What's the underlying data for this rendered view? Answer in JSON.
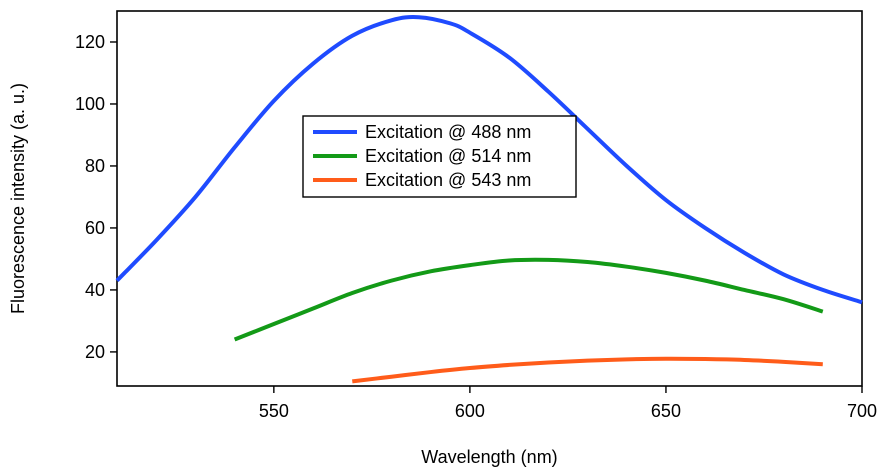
{
  "chart_data": {
    "type": "line",
    "title": "",
    "xlabel": "Wavelength (nm)",
    "ylabel": "Fluorescence intensity (a. u.)",
    "xlim": [
      510,
      700
    ],
    "ylim": [
      9,
      130
    ],
    "x_ticks": [
      550,
      600,
      650,
      700
    ],
    "y_ticks": [
      20,
      40,
      60,
      80,
      100,
      120
    ],
    "grid": false,
    "legend_position": "upper-center",
    "series": [
      {
        "name": "Excitation @ 488 nm",
        "color": "#1f4bff",
        "x": [
          510,
          520,
          530,
          540,
          550,
          560,
          570,
          580,
          587,
          595,
          600,
          610,
          620,
          630,
          640,
          650,
          660,
          670,
          680,
          690,
          700
        ],
        "y": [
          43,
          56,
          70,
          86,
          101,
          113,
          122,
          127,
          128,
          126,
          123,
          115,
          104,
          92,
          80,
          69,
          60,
          52,
          45,
          40,
          36
        ]
      },
      {
        "name": "Excitation @ 514 nm",
        "color": "#139a17",
        "x": [
          540,
          550,
          560,
          570,
          580,
          590,
          600,
          610,
          620,
          630,
          640,
          650,
          660,
          670,
          680,
          690
        ],
        "y": [
          24,
          29,
          34,
          39,
          43,
          46,
          48,
          49.5,
          49.7,
          49,
          47.5,
          45.5,
          43,
          40,
          37,
          33
        ]
      },
      {
        "name": "Excitation @ 543 nm",
        "color": "#ff5c1a",
        "x": [
          570,
          580,
          590,
          600,
          610,
          620,
          630,
          640,
          650,
          660,
          670,
          680,
          690
        ],
        "y": [
          10.5,
          12,
          13.5,
          14.8,
          15.8,
          16.6,
          17.2,
          17.6,
          17.8,
          17.7,
          17.4,
          16.8,
          16
        ]
      }
    ]
  }
}
